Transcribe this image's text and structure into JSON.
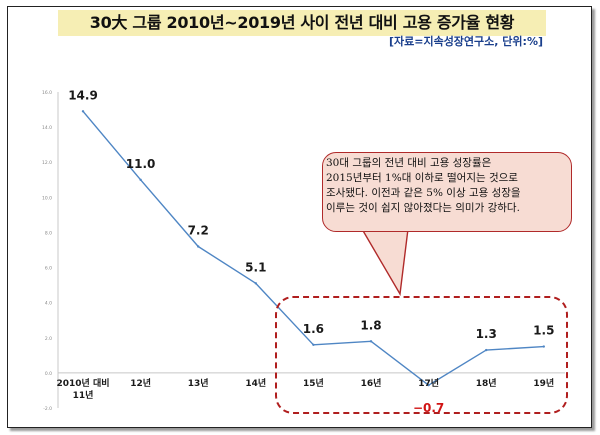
{
  "title": "30大 그룹 2010년~2019년 사이 전년 대비 고용 증가율 현황",
  "source": "[자료=지속성장연구소, 단위:%]",
  "annotation": "30대 그룹의 전년 대비 고용 성장률은\n2015년부터 1%대 이하로 떨어지는 것으로\n조사됐다. 이전과 같은 5% 이상 고용 성장을\n이루는 것이 쉽지 않아졌다는 의미가 강하다.",
  "colors": {
    "line": "#4f86c4",
    "negative_label": "#d11414",
    "highlight": "#b01e1e",
    "title_bg": "#f6eeb4",
    "callout_bg": "#f7dcd3"
  },
  "chart_data": {
    "type": "line",
    "categories": [
      "2010년 대비 11년",
      "12년",
      "13년",
      "14년",
      "15년",
      "16년",
      "17년",
      "18년",
      "19년"
    ],
    "category_lines": [
      [
        "2010년 대비",
        "11년"
      ],
      [
        "12년"
      ],
      [
        "13년"
      ],
      [
        "14년"
      ],
      [
        "15년"
      ],
      [
        "16년"
      ],
      [
        "17년"
      ],
      [
        "18년"
      ],
      [
        "19년"
      ]
    ],
    "values": [
      14.9,
      11.0,
      7.2,
      5.1,
      1.6,
      1.8,
      -0.7,
      1.3,
      1.5
    ],
    "value_labels": [
      "14.9",
      "11.0",
      "7.2",
      "5.1",
      "1.6",
      "1.8",
      "−0.7",
      "1.3",
      "1.5"
    ],
    "ylim": [
      -2,
      16
    ],
    "yticks": [
      "-2.0",
      "0.0",
      "2.0",
      "4.0",
      "6.0",
      "8.0",
      "10.0",
      "12.0",
      "14.0",
      "16.0"
    ],
    "grid": false,
    "legend": "none"
  }
}
